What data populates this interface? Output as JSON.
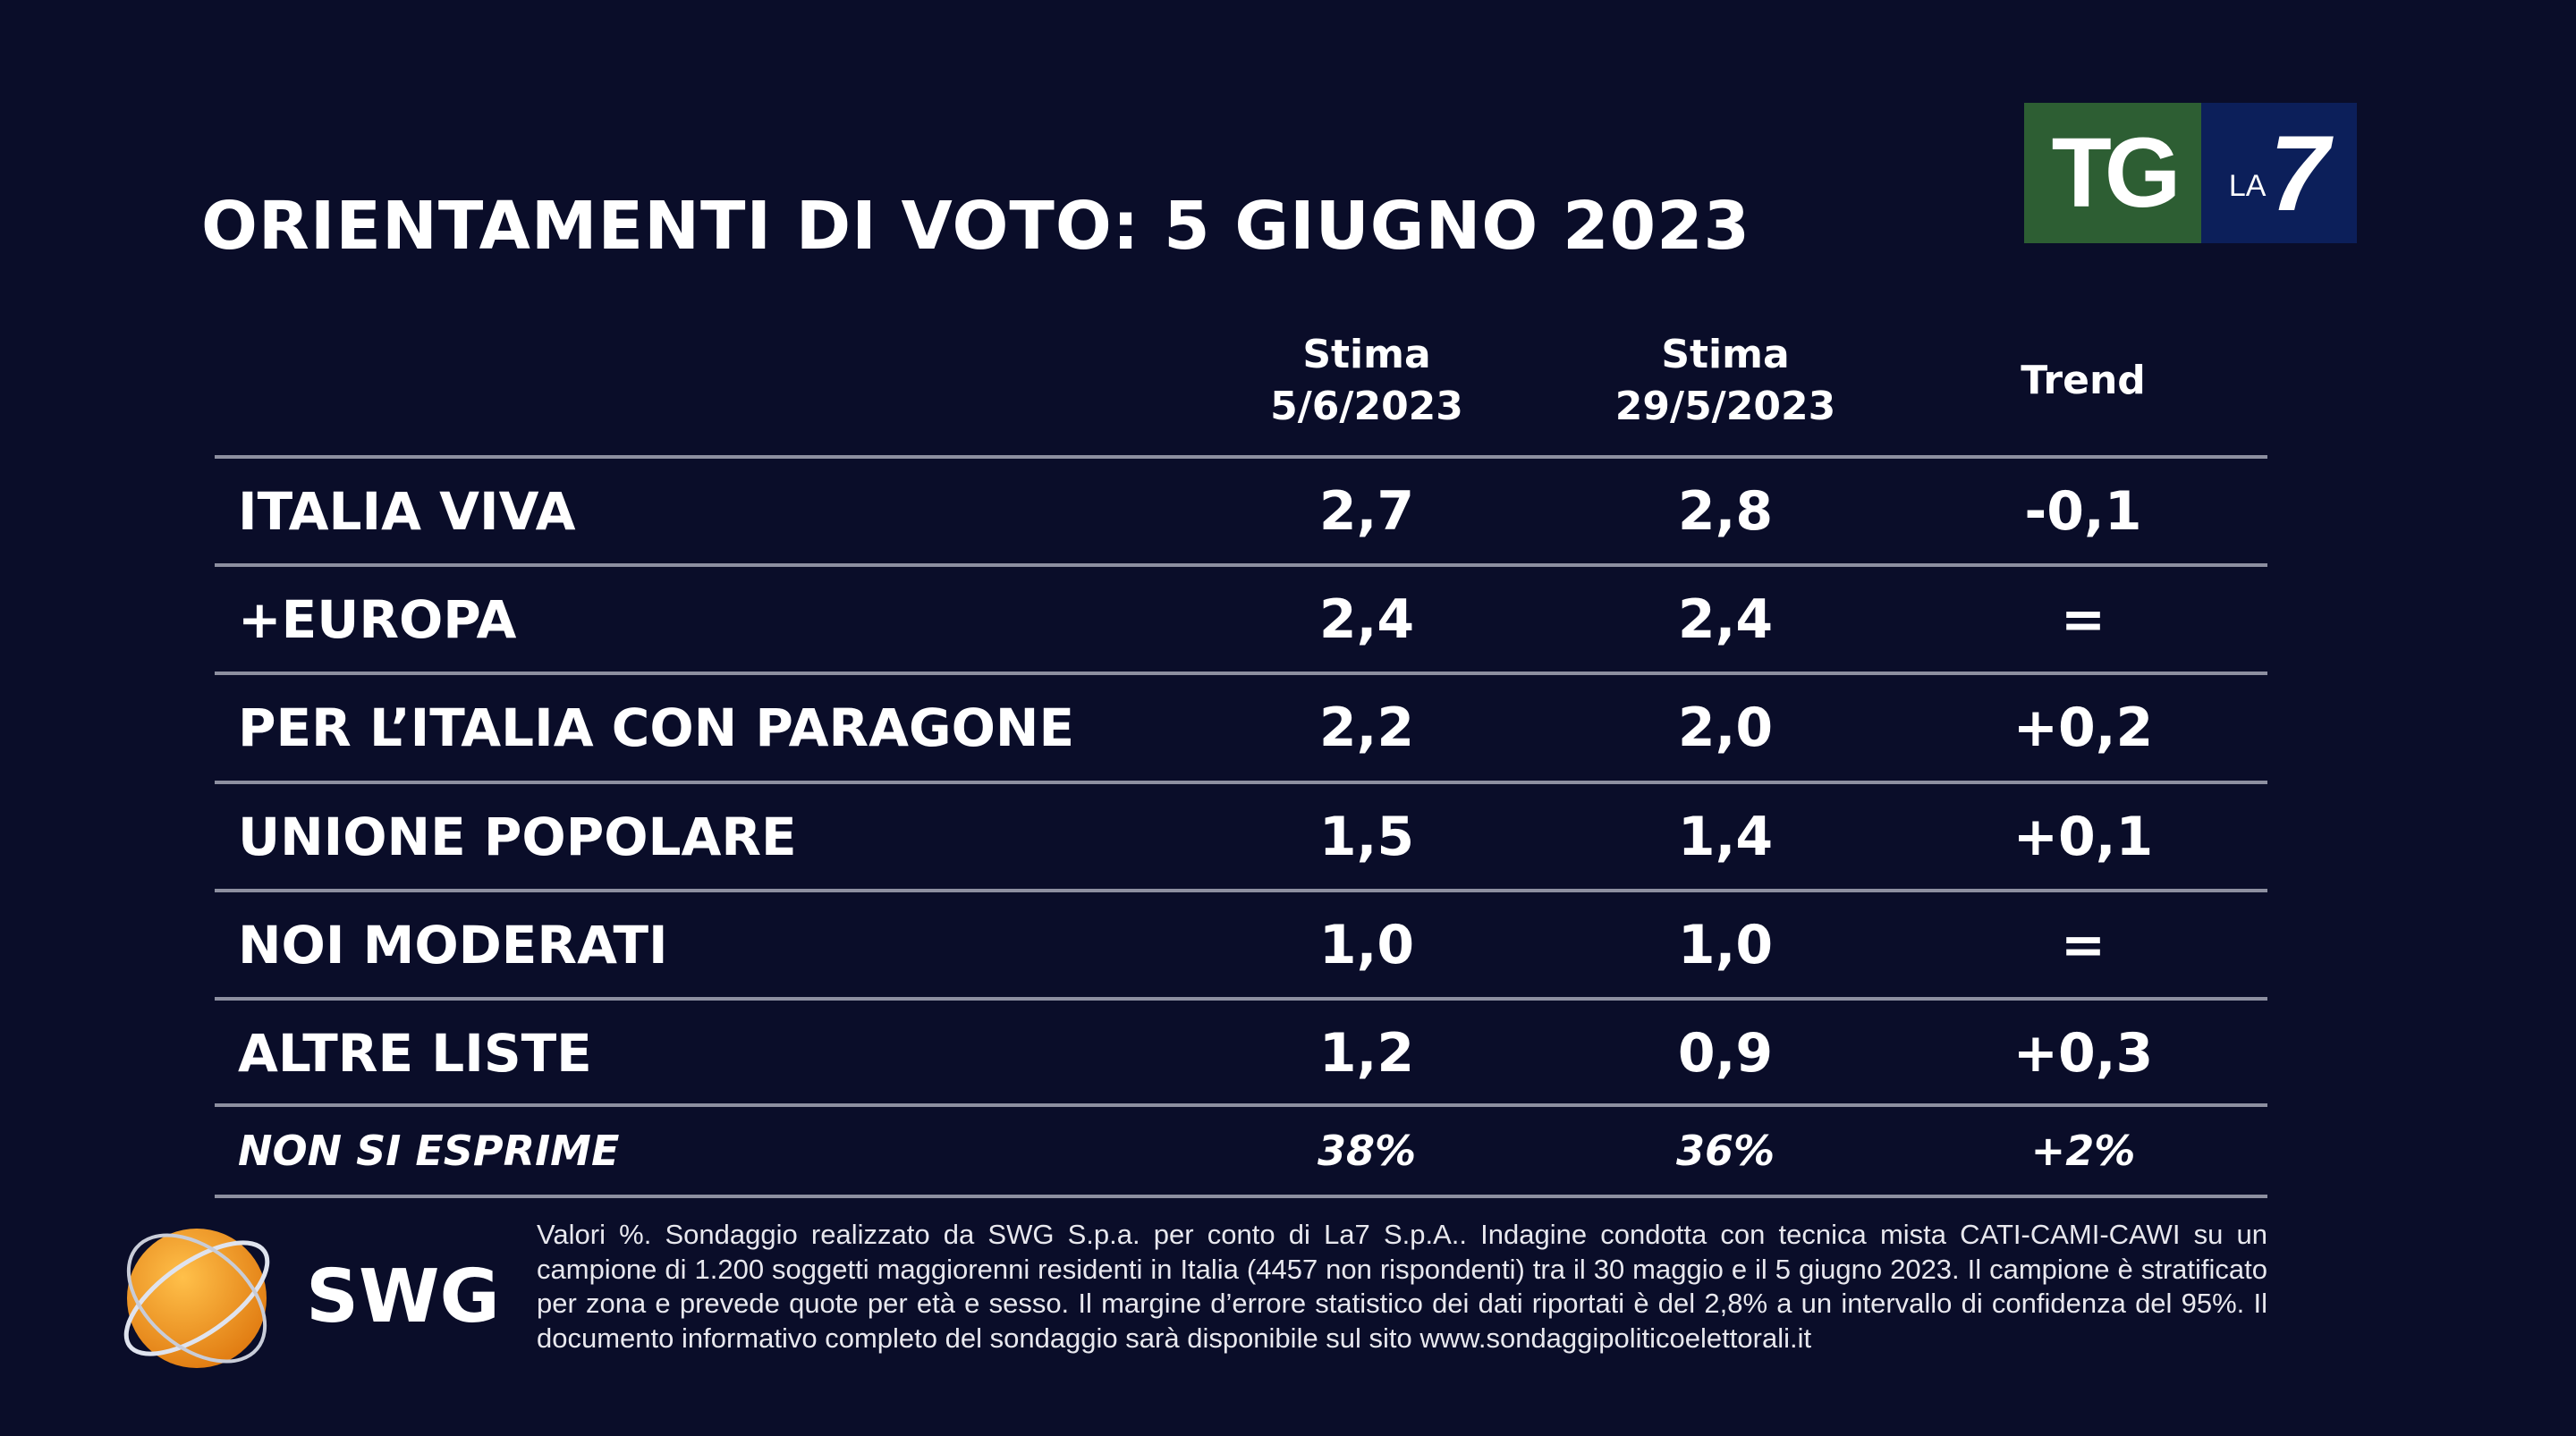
{
  "title": "ORIENTAMENTI DI VOTO: 5 GIUGNO 2023",
  "logo": {
    "tg": "TG",
    "la": "LA",
    "seven": "7",
    "colors": {
      "green": "#2d5e33",
      "blue": "#0c1f5a"
    }
  },
  "table": {
    "headers": [
      {
        "line1": "Stima",
        "line2": "5/6/2023"
      },
      {
        "line1": "Stima",
        "line2": "29/5/2023"
      },
      {
        "line1": "Trend",
        "line2": ""
      }
    ],
    "rows": [
      {
        "party": "ITALIA VIVA",
        "current": "2,7",
        "previous": "2,8",
        "trend": "-0,1"
      },
      {
        "party": "+EUROPA",
        "current": "2,4",
        "previous": "2,4",
        "trend": "="
      },
      {
        "party": "PER L’ITALIA CON PARAGONE",
        "current": "2,2",
        "previous": "2,0",
        "trend": "+0,2"
      },
      {
        "party": "UNIONE POPOLARE",
        "current": "1,5",
        "previous": "1,4",
        "trend": "+0,1"
      },
      {
        "party": "NOI MODERATI",
        "current": "1,0",
        "previous": "1,0",
        "trend": "="
      },
      {
        "party": "ALTRE LISTE",
        "current": "1,2",
        "previous": "0,9",
        "trend": "+0,3"
      },
      {
        "party": "NON SI ESPRIME",
        "current": "38%",
        "previous": "36%",
        "trend": "+2%"
      }
    ]
  },
  "swg_logo": "SWG",
  "note": "Valori %. Sondaggio realizzato da SWG S.p.a. per conto di La7 S.p.A.. Indagine condotta con tecnica mista CATI-CAMI-CAWI su un campione di 1.200 soggetti maggiorenni residenti in Italia (4457 non rispondenti) tra il 30 maggio e il 5 giugno 2023. Il campione è stratificato per zona e prevede quote per età e sesso. Il margine d’errore statistico dei dati riportati è del 2,8% a un intervallo di confidenza del 95%. Il documento informativo completo del sondaggio sarà disponibile sul sito www.sondaggipoliticoelettorali.it"
}
